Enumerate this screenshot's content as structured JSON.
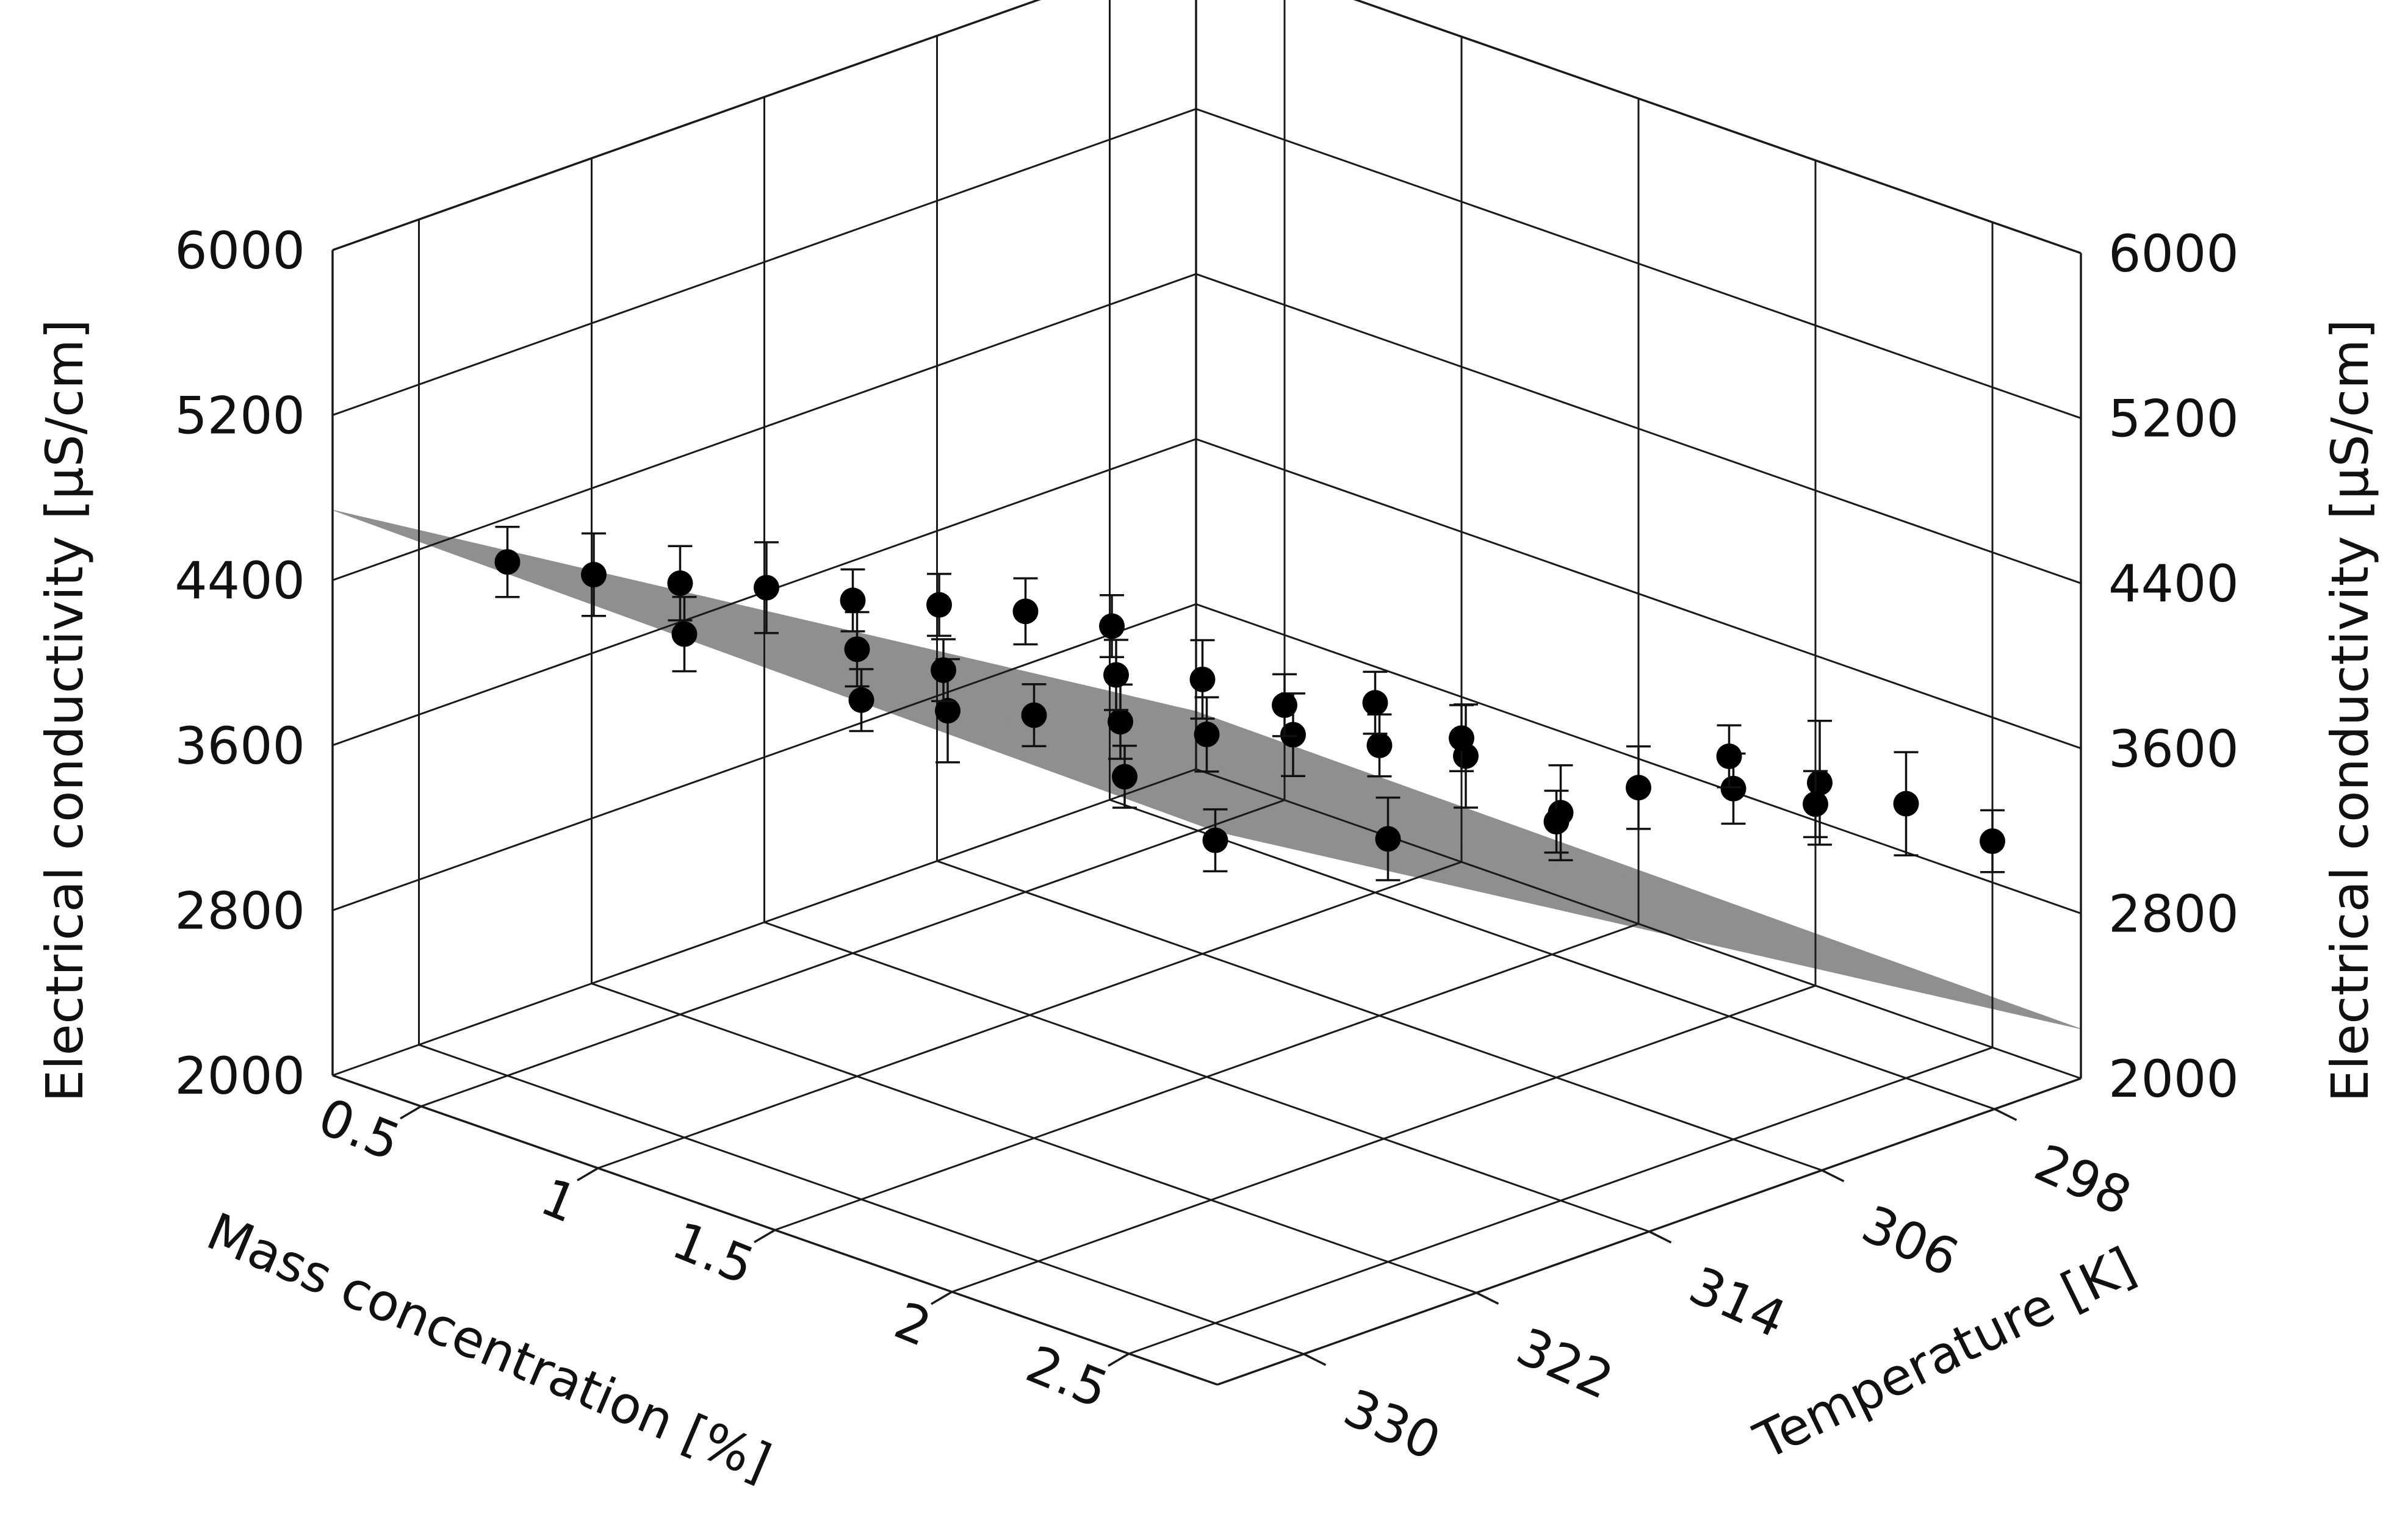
{
  "chart_data": {
    "type": "scatter",
    "subtype": "3d-scatter-with-fitted-surface",
    "title": "",
    "xlabel": "Mass concentration [%]",
    "ylabel": "Temperature [K]",
    "zlabel": "Electrical conductivity [µS/cm]",
    "xlim": [
      0.25,
      2.75
    ],
    "ylim": [
      294,
      334
    ],
    "zlim": [
      2000,
      6000
    ],
    "x_ticks": [
      "0.5",
      "1",
      "1.5",
      "2",
      "2.5"
    ],
    "y_ticks": [
      "298",
      "306",
      "314",
      "322",
      "330"
    ],
    "z_ticks": [
      "2000",
      "2800",
      "3600",
      "4400",
      "5200",
      "6000"
    ],
    "grid": true,
    "legend": "none",
    "colors": {
      "points": "#000000",
      "surface": "#8f8f8f",
      "grid": "#1a1a1a"
    },
    "surface": {
      "note_fit": "fitted conductivity surface over the data domain",
      "corners": [
        {
          "x": 0.25,
          "y": 334,
          "z": 4740
        },
        {
          "x": 2.75,
          "y": 334,
          "z": 4680
        },
        {
          "x": 0.25,
          "y": 294,
          "z": 2280
        },
        {
          "x": 2.75,
          "y": 294,
          "z": 2240
        }
      ]
    },
    "points": [
      {
        "x": 0.5,
        "y": 330,
        "z": 4490,
        "err": 170
      },
      {
        "x": 1.0,
        "y": 330,
        "z": 4440,
        "err": 180
      },
      {
        "x": 1.5,
        "y": 330,
        "z": 4420,
        "err": 150
      },
      {
        "x": 2.5,
        "y": 330,
        "z": 4340,
        "err": 150
      },
      {
        "x": 0.5,
        "y": 326,
        "z": 4280,
        "err": 200
      },
      {
        "x": 1.5,
        "y": 326,
        "z": 4220,
        "err": 250
      },
      {
        "x": 2.0,
        "y": 326,
        "z": 4200,
        "err": 150
      },
      {
        "x": 0.5,
        "y": 322,
        "z": 4090,
        "err": 180
      },
      {
        "x": 1.0,
        "y": 322,
        "z": 4070,
        "err": 180
      },
      {
        "x": 1.5,
        "y": 322,
        "z": 4050,
        "err": 150
      },
      {
        "x": 2.5,
        "y": 322,
        "z": 4050,
        "err": 200
      },
      {
        "x": 0.5,
        "y": 318,
        "z": 3920,
        "err": 220
      },
      {
        "x": 1.0,
        "y": 318,
        "z": 3820,
        "err": 150
      },
      {
        "x": 1.5,
        "y": 318,
        "z": 3870,
        "err": 180
      },
      {
        "x": 0.5,
        "y": 314,
        "z": 3710,
        "err": 150
      },
      {
        "x": 1.5,
        "y": 314,
        "z": 3660,
        "err": 180
      },
      {
        "x": 2.5,
        "y": 314,
        "z": 3880,
        "err": 230
      },
      {
        "x": 0.5,
        "y": 310,
        "z": 3540,
        "err": 150
      },
      {
        "x": 1.0,
        "y": 310,
        "z": 3500,
        "err": 170
      },
      {
        "x": 1.5,
        "y": 310,
        "z": 3510,
        "err": 200
      },
      {
        "x": 0.5,
        "y": 306,
        "z": 3360,
        "err": 160
      },
      {
        "x": 1.0,
        "y": 306,
        "z": 3330,
        "err": 190
      },
      {
        "x": 1.5,
        "y": 306,
        "z": 3310,
        "err": 150
      },
      {
        "x": 2.0,
        "y": 306,
        "z": 3240,
        "err": 150
      },
      {
        "x": 2.5,
        "y": 306,
        "z": 3700,
        "err": 170
      },
      {
        "x": 0.5,
        "y": 302,
        "z": 3140,
        "err": 150
      },
      {
        "x": 1.5,
        "y": 302,
        "z": 3110,
        "err": 250
      },
      {
        "x": 2.5,
        "y": 302,
        "z": 3580,
        "err": 300
      },
      {
        "x": 1.0,
        "y": 298,
        "z": 2920,
        "err": 150
      },
      {
        "x": 2.0,
        "y": 298,
        "z": 3260,
        "err": 150
      },
      {
        "x": 2.5,
        "y": 298,
        "z": 3330,
        "err": 250
      },
      {
        "x": 0.5,
        "y": 294,
        "z": 2460,
        "err": 150
      },
      {
        "x": 1.0,
        "y": 294,
        "z": 2600,
        "err": 160
      },
      {
        "x": 1.5,
        "y": 294,
        "z": 2660,
        "err": 200
      },
      {
        "x": 2.0,
        "y": 294,
        "z": 2880,
        "err": 160
      },
      {
        "x": 2.5,
        "y": 294,
        "z": 3000,
        "err": 150
      }
    ]
  }
}
